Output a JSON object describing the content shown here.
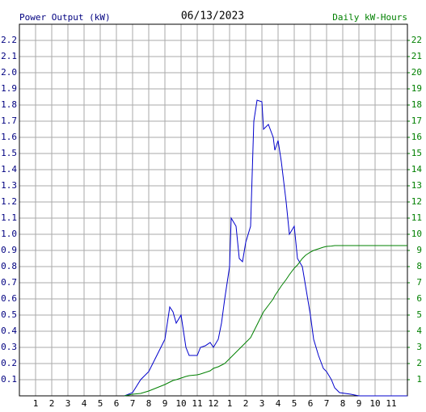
{
  "chart_data": {
    "type": "line",
    "title": "06/13/2023",
    "y_label": "Power Output (kW)",
    "y2_label": "Daily kW-Hours",
    "x": [
      6.5,
      7,
      7.5,
      8,
      8.5,
      9,
      9.3,
      9.5,
      9.7,
      10,
      10.3,
      10.5,
      11,
      11.2,
      11.5,
      11.8,
      12,
      12.3,
      12.5,
      12.7,
      13,
      13.1,
      13.4,
      13.6,
      13.8,
      14,
      14.3,
      14.5,
      14.7,
      15,
      15.1,
      15.4,
      15.7,
      15.8,
      16,
      16.2,
      16.5,
      16.7,
      17,
      17.2,
      17.5,
      17.7,
      18,
      18.2,
      18.5,
      18.8,
      19,
      19.3,
      19.5,
      19.8,
      20.5,
      21,
      24
    ],
    "series": [
      {
        "color": "#0000cc",
        "axis": "y",
        "values": [
          0,
          0.02,
          0.1,
          0.15,
          0.25,
          0.35,
          0.55,
          0.52,
          0.45,
          0.5,
          0.3,
          0.25,
          0.25,
          0.3,
          0.31,
          0.33,
          0.3,
          0.35,
          0.45,
          0.6,
          0.8,
          1.1,
          1.05,
          0.85,
          0.83,
          0.95,
          1.05,
          1.7,
          1.83,
          1.82,
          1.65,
          1.68,
          1.6,
          1.52,
          1.58,
          1.45,
          1.2,
          1.0,
          1.05,
          0.85,
          0.8,
          0.68,
          0.5,
          0.35,
          0.25,
          0.17,
          0.15,
          0.1,
          0.05,
          0.02,
          0.01,
          0,
          0
        ]
      },
      {
        "color": "#008000",
        "axis": "y2",
        "values": [
          0,
          0.1,
          0.15,
          0.3,
          0.5,
          0.7,
          0.85,
          0.95,
          1.0,
          1.1,
          1.2,
          1.25,
          1.3,
          1.35,
          1.45,
          1.55,
          1.7,
          1.8,
          1.9,
          2.0,
          2.3,
          2.4,
          2.7,
          2.9,
          3.1,
          3.3,
          3.6,
          4.0,
          4.4,
          5.0,
          5.2,
          5.6,
          6.0,
          6.2,
          6.5,
          6.8,
          7.2,
          7.5,
          7.9,
          8.1,
          8.5,
          8.7,
          8.9,
          9.0,
          9.1,
          9.2,
          9.25,
          9.27,
          9.3,
          9.3,
          9.3,
          9.3,
          9.3
        ]
      }
    ],
    "xlim": [
      0,
      24
    ],
    "xticks": [
      1,
      2,
      3,
      4,
      5,
      6,
      7,
      8,
      9,
      10,
      11,
      12,
      {
        "value": 13,
        "label": "1"
      },
      {
        "value": 14,
        "label": "2"
      },
      {
        "value": 15,
        "label": "3"
      },
      {
        "value": 16,
        "label": "4"
      },
      {
        "value": 17,
        "label": "5"
      },
      {
        "value": 18,
        "label": "6"
      },
      {
        "value": 19,
        "label": "7"
      },
      {
        "value": 20,
        "label": "8"
      },
      {
        "value": 21,
        "label": "9"
      },
      {
        "value": 22,
        "label": "10"
      },
      {
        "value": 23,
        "label": "11"
      }
    ],
    "ylim": [
      0,
      2.3
    ],
    "yticks": [
      0.1,
      0.2,
      0.3,
      0.4,
      0.5,
      0.6,
      0.7,
      0.8,
      0.9,
      {
        "value": 1,
        "label": "1.0"
      },
      1.1,
      1.2,
      1.3,
      1.4,
      1.5,
      1.6,
      1.7,
      1.8,
      1.9,
      {
        "value": 2,
        "label": "2.0"
      },
      2.1,
      2.2
    ],
    "y2lim": [
      0,
      23
    ],
    "y2ticks": [
      1,
      2,
      3,
      4,
      5,
      6,
      7,
      8,
      9,
      10,
      11,
      12,
      13,
      14,
      15,
      16,
      17,
      18,
      19,
      20,
      21,
      22
    ],
    "grid": true
  }
}
